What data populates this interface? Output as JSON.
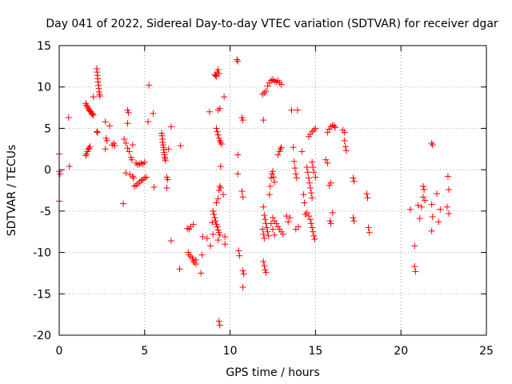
{
  "chart_data": {
    "type": "scatter",
    "title": "Day 041 of 2022, Sidereal Day-to-day VTEC variation (SDTVAR) for receiver dgar",
    "xlabel": "GPS time / hours",
    "ylabel": "SDTVAR / TECUs",
    "xlim": [
      0,
      25
    ],
    "ylim": [
      -20,
      15
    ],
    "xticks": [
      0,
      5,
      10,
      15,
      20,
      25
    ],
    "yticks": [
      -20,
      -15,
      -10,
      -5,
      0,
      5,
      10,
      15
    ],
    "grid": true,
    "marker": "+",
    "color": "#ff0000",
    "series": [
      {
        "name": "SDTVAR",
        "points": [
          [
            0.0,
            1.9
          ],
          [
            0.0,
            -0.2
          ],
          [
            0.05,
            -0.5
          ],
          [
            0.0,
            -3.8
          ],
          [
            0.55,
            6.3
          ],
          [
            0.6,
            0.4
          ],
          [
            1.55,
            1.7
          ],
          [
            1.6,
            1.9
          ],
          [
            1.65,
            2.2
          ],
          [
            1.7,
            2.5
          ],
          [
            1.75,
            2.6
          ],
          [
            1.8,
            2.8
          ],
          [
            1.55,
            8.0
          ],
          [
            1.6,
            7.8
          ],
          [
            1.65,
            7.6
          ],
          [
            1.7,
            7.4
          ],
          [
            1.75,
            7.2
          ],
          [
            1.8,
            7.1
          ],
          [
            1.85,
            7.0
          ],
          [
            1.9,
            6.8
          ],
          [
            1.95,
            6.7
          ],
          [
            2.0,
            6.6
          ],
          [
            2.0,
            8.8
          ],
          [
            2.2,
            4.6
          ],
          [
            2.25,
            4.5
          ],
          [
            2.2,
            12.2
          ],
          [
            2.22,
            11.8
          ],
          [
            2.24,
            11.4
          ],
          [
            2.26,
            11.0
          ],
          [
            2.28,
            10.6
          ],
          [
            2.3,
            10.2
          ],
          [
            2.32,
            9.8
          ],
          [
            2.34,
            9.4
          ],
          [
            2.36,
            9.1
          ],
          [
            2.38,
            8.9
          ],
          [
            2.7,
            5.8
          ],
          [
            2.75,
            3.8
          ],
          [
            2.8,
            3.5
          ],
          [
            2.7,
            2.5
          ],
          [
            2.95,
            5.3
          ],
          [
            3.2,
            3.2
          ],
          [
            3.25,
            2.9
          ],
          [
            3.1,
            3.0
          ],
          [
            3.8,
            3.7
          ],
          [
            3.9,
            3.2
          ],
          [
            3.75,
            -4.1
          ],
          [
            3.9,
            -0.4
          ],
          [
            4.0,
            7.2
          ],
          [
            4.05,
            6.9
          ],
          [
            4.0,
            5.6
          ],
          [
            4.0,
            2.6
          ],
          [
            4.1,
            2.2
          ],
          [
            4.2,
            1.5
          ],
          [
            4.25,
            1.2
          ],
          [
            4.3,
            3.0
          ],
          [
            4.15,
            -0.6
          ],
          [
            4.3,
            -0.8
          ],
          [
            4.35,
            -1.0
          ],
          [
            4.5,
            0.8
          ],
          [
            4.6,
            0.6
          ],
          [
            4.7,
            0.7
          ],
          [
            4.8,
            0.8
          ],
          [
            4.9,
            0.7
          ],
          [
            5.0,
            0.9
          ],
          [
            4.4,
            -2.0
          ],
          [
            4.5,
            -1.9
          ],
          [
            4.6,
            -1.7
          ],
          [
            4.7,
            -1.5
          ],
          [
            4.8,
            -1.3
          ],
          [
            4.9,
            -1.2
          ],
          [
            5.0,
            -1.0
          ],
          [
            5.1,
            -0.9
          ],
          [
            5.25,
            10.2
          ],
          [
            5.2,
            5.8
          ],
          [
            5.5,
            6.8
          ],
          [
            5.55,
            -2.1
          ],
          [
            6.0,
            4.4
          ],
          [
            6.02,
            4.1
          ],
          [
            6.04,
            3.7
          ],
          [
            6.06,
            3.3
          ],
          [
            6.08,
            3.0
          ],
          [
            6.1,
            2.7
          ],
          [
            6.12,
            2.4
          ],
          [
            6.14,
            2.1
          ],
          [
            6.16,
            1.8
          ],
          [
            6.18,
            1.5
          ],
          [
            6.2,
            1.3
          ],
          [
            6.22,
            1.1
          ],
          [
            6.3,
            -0.9
          ],
          [
            6.35,
            -1.2
          ],
          [
            6.3,
            -2.2
          ],
          [
            6.4,
            2.5
          ],
          [
            6.55,
            5.2
          ],
          [
            6.55,
            -8.6
          ],
          [
            7.1,
            2.9
          ],
          [
            7.05,
            -12.0
          ],
          [
            7.5,
            -7.1
          ],
          [
            7.6,
            -7.2
          ],
          [
            7.7,
            -6.9
          ],
          [
            7.85,
            -6.6
          ],
          [
            7.55,
            -10.0
          ],
          [
            7.6,
            -10.3
          ],
          [
            7.7,
            -10.5
          ],
          [
            7.8,
            -10.7
          ],
          [
            7.85,
            -11.0
          ],
          [
            7.9,
            -11.2
          ],
          [
            8.0,
            -10.9
          ],
          [
            8.0,
            -11.4
          ],
          [
            8.3,
            -12.5
          ],
          [
            8.35,
            -10.3
          ],
          [
            8.4,
            -8.1
          ],
          [
            8.65,
            -8.3
          ],
          [
            8.8,
            7.0
          ],
          [
            8.85,
            -9.2
          ],
          [
            8.95,
            -6.4
          ],
          [
            9.0,
            -7.8
          ],
          [
            9.1,
            11.5
          ],
          [
            9.15,
            11.4
          ],
          [
            9.2,
            11.3
          ],
          [
            9.25,
            11.8
          ],
          [
            9.3,
            12.1
          ],
          [
            9.35,
            11.6
          ],
          [
            9.2,
            5.0
          ],
          [
            9.25,
            4.6
          ],
          [
            9.3,
            4.2
          ],
          [
            9.35,
            3.8
          ],
          [
            9.4,
            3.5
          ],
          [
            9.45,
            3.3
          ],
          [
            9.5,
            3.1
          ],
          [
            9.3,
            7.2
          ],
          [
            9.4,
            7.4
          ],
          [
            9.0,
            -5.0
          ],
          [
            9.05,
            -5.4
          ],
          [
            9.1,
            -5.8
          ],
          [
            9.15,
            -6.2
          ],
          [
            9.2,
            -6.6
          ],
          [
            9.25,
            -6.9
          ],
          [
            9.3,
            -7.3
          ],
          [
            9.35,
            -7.6
          ],
          [
            9.4,
            -7.9
          ],
          [
            9.2,
            -4.0
          ],
          [
            9.3,
            -3.5
          ],
          [
            9.35,
            -2.5
          ],
          [
            9.4,
            -2.0
          ],
          [
            9.45,
            -2.2
          ],
          [
            9.3,
            -8.5
          ],
          [
            9.35,
            -18.3
          ],
          [
            9.4,
            -18.8
          ],
          [
            9.45,
            0.4
          ],
          [
            9.6,
            -3.0
          ],
          [
            9.65,
            8.8
          ],
          [
            9.7,
            -8.1
          ],
          [
            9.7,
            -9.0
          ],
          [
            10.4,
            13.3
          ],
          [
            10.45,
            13.1
          ],
          [
            10.45,
            1.8
          ],
          [
            10.45,
            -0.5
          ],
          [
            10.5,
            -9.8
          ],
          [
            10.55,
            -10.4
          ],
          [
            10.7,
            6.3
          ],
          [
            10.75,
            6.0
          ],
          [
            10.7,
            -2.6
          ],
          [
            10.75,
            -3.3
          ],
          [
            10.75,
            -12.2
          ],
          [
            10.8,
            -12.6
          ],
          [
            10.75,
            -14.2
          ],
          [
            11.9,
            9.1
          ],
          [
            12.0,
            9.3
          ],
          [
            12.1,
            9.5
          ],
          [
            11.95,
            6.0
          ],
          [
            12.2,
            10.1
          ],
          [
            12.3,
            10.5
          ],
          [
            12.4,
            10.8
          ],
          [
            12.5,
            10.9
          ],
          [
            12.6,
            10.7
          ],
          [
            12.7,
            10.6
          ],
          [
            12.8,
            10.8
          ],
          [
            12.9,
            10.5
          ],
          [
            13.0,
            10.3
          ],
          [
            11.95,
            -4.5
          ],
          [
            12.0,
            -5.5
          ],
          [
            12.05,
            -6.0
          ],
          [
            12.1,
            -6.5
          ],
          [
            12.15,
            -7.0
          ],
          [
            12.2,
            -7.5
          ],
          [
            12.25,
            -8.0
          ],
          [
            11.9,
            -7.2
          ],
          [
            11.95,
            -7.8
          ],
          [
            12.0,
            -8.3
          ],
          [
            12.3,
            -3.0
          ],
          [
            12.35,
            -2.0
          ],
          [
            12.4,
            -1.0
          ],
          [
            12.45,
            -0.5
          ],
          [
            12.5,
            -0.2
          ],
          [
            12.55,
            -0.9
          ],
          [
            12.6,
            -1.5
          ],
          [
            12.5,
            -5.8
          ],
          [
            12.6,
            -6.2
          ],
          [
            12.7,
            -6.5
          ],
          [
            12.8,
            -6.9
          ],
          [
            12.9,
            -7.2
          ],
          [
            13.0,
            -7.5
          ],
          [
            13.1,
            -7.8
          ],
          [
            12.4,
            -6.5
          ],
          [
            12.5,
            -7.2
          ],
          [
            12.6,
            -7.9
          ],
          [
            12.8,
            1.8
          ],
          [
            12.9,
            2.2
          ],
          [
            12.95,
            2.5
          ],
          [
            13.0,
            2.7
          ],
          [
            11.95,
            -11.1
          ],
          [
            12.0,
            -11.6
          ],
          [
            12.05,
            -12.1
          ],
          [
            12.1,
            -12.4
          ],
          [
            13.3,
            -5.6
          ],
          [
            13.4,
            -6.3
          ],
          [
            13.5,
            -5.8
          ],
          [
            13.6,
            7.2
          ],
          [
            13.7,
            2.7
          ],
          [
            13.75,
            1.0
          ],
          [
            13.8,
            0.2
          ],
          [
            13.85,
            -0.5
          ],
          [
            13.9,
            -1.0
          ],
          [
            13.85,
            -7.2
          ],
          [
            14.0,
            -6.9
          ],
          [
            13.95,
            7.2
          ],
          [
            14.2,
            2.2
          ],
          [
            14.3,
            -3.0
          ],
          [
            14.35,
            -4.0
          ],
          [
            14.4,
            -5.4
          ],
          [
            14.5,
            0.3
          ],
          [
            14.55,
            -0.3
          ],
          [
            14.6,
            -1.0
          ],
          [
            14.65,
            -1.6
          ],
          [
            14.7,
            -2.2
          ],
          [
            14.75,
            -2.8
          ],
          [
            14.8,
            -3.4
          ],
          [
            14.5,
            -5.2
          ],
          [
            14.6,
            -5.6
          ],
          [
            14.7,
            -6.0
          ],
          [
            14.75,
            -6.5
          ],
          [
            14.8,
            -7.0
          ],
          [
            14.85,
            -7.5
          ],
          [
            14.9,
            -8.0
          ],
          [
            14.95,
            -8.4
          ],
          [
            14.6,
            4.0
          ],
          [
            14.7,
            4.3
          ],
          [
            14.8,
            4.6
          ],
          [
            14.9,
            4.8
          ],
          [
            15.0,
            5.0
          ],
          [
            14.8,
            0.9
          ],
          [
            14.85,
            0.3
          ],
          [
            14.9,
            -0.3
          ],
          [
            15.0,
            -0.9
          ],
          [
            15.6,
            1.2
          ],
          [
            15.7,
            0.8
          ],
          [
            15.8,
            -1.9
          ],
          [
            15.9,
            -1.6
          ],
          [
            15.7,
            4.5
          ],
          [
            15.8,
            4.9
          ],
          [
            15.9,
            5.2
          ],
          [
            16.0,
            5.4
          ],
          [
            16.1,
            5.3
          ],
          [
            16.15,
            5.1
          ],
          [
            15.85,
            -6.2
          ],
          [
            15.9,
            -6.5
          ],
          [
            16.0,
            -5.2
          ],
          [
            16.6,
            4.8
          ],
          [
            16.7,
            4.5
          ],
          [
            16.7,
            3.5
          ],
          [
            16.75,
            2.8
          ],
          [
            16.8,
            2.3
          ],
          [
            17.2,
            -1.0
          ],
          [
            17.25,
            -1.4
          ],
          [
            17.2,
            -5.8
          ],
          [
            17.25,
            -6.2
          ],
          [
            18.0,
            -2.9
          ],
          [
            18.05,
            -3.4
          ],
          [
            18.1,
            -7.0
          ],
          [
            18.15,
            -7.6
          ],
          [
            20.55,
            -4.8
          ],
          [
            20.8,
            -9.2
          ],
          [
            20.8,
            -11.7
          ],
          [
            20.85,
            -12.3
          ],
          [
            21.0,
            -4.3
          ],
          [
            21.1,
            -5.9
          ],
          [
            21.2,
            -4.5
          ],
          [
            21.3,
            -2.0
          ],
          [
            21.35,
            -2.4
          ],
          [
            21.3,
            -3.3
          ],
          [
            21.4,
            -3.7
          ],
          [
            21.8,
            3.2
          ],
          [
            21.85,
            3.0
          ],
          [
            21.8,
            -4.2
          ],
          [
            21.85,
            -5.7
          ],
          [
            21.8,
            -7.4
          ],
          [
            22.1,
            -2.9
          ],
          [
            22.2,
            -6.3
          ],
          [
            22.3,
            -4.8
          ],
          [
            22.75,
            -0.8
          ],
          [
            22.8,
            -2.4
          ],
          [
            22.7,
            -4.5
          ],
          [
            22.8,
            -5.3
          ]
        ]
      }
    ]
  }
}
